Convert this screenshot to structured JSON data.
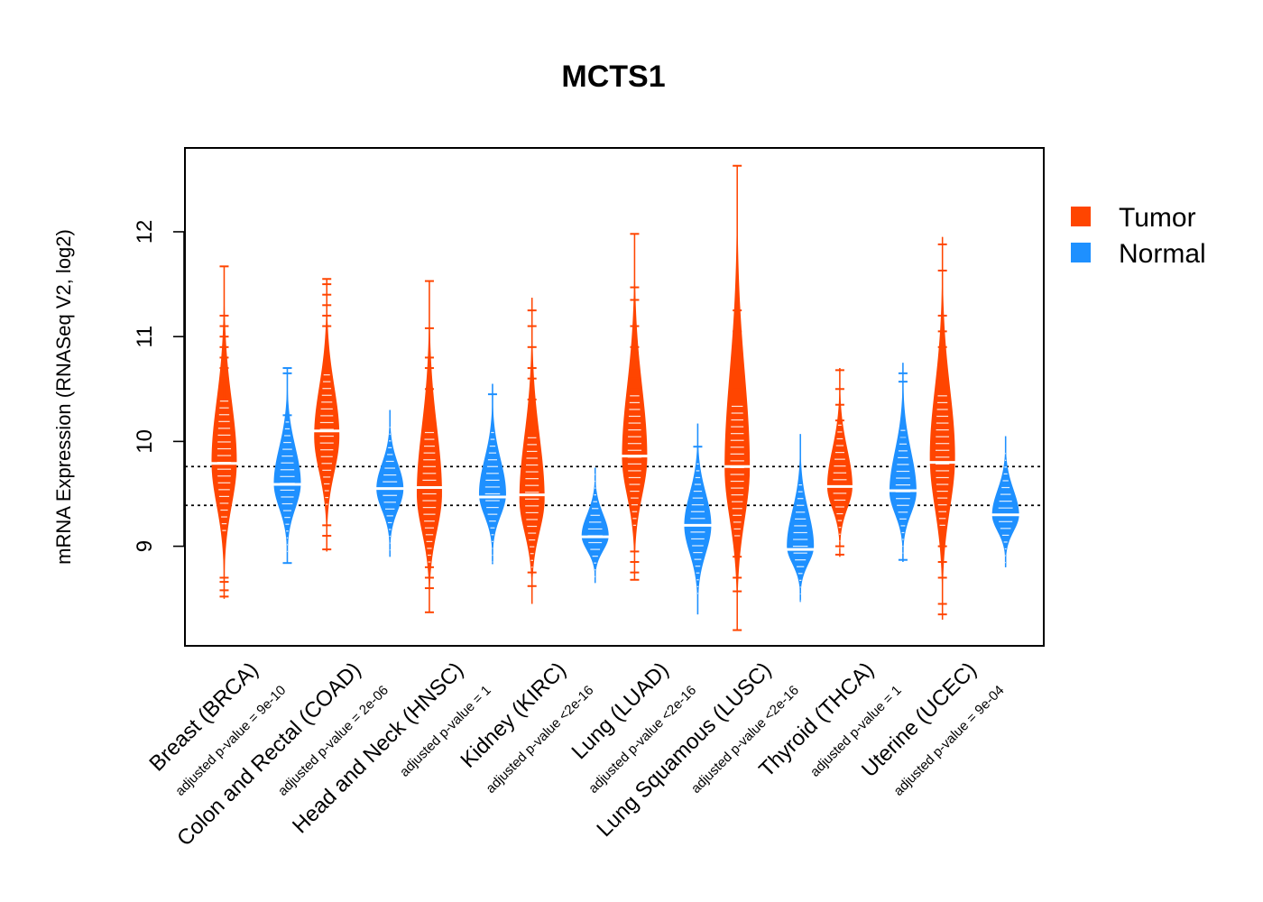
{
  "chart_data": {
    "type": "beanplot",
    "title": "MCTS1",
    "ylabel": "mRNA Expression (RNASeq V2, log2)",
    "xlabel": "",
    "ylim": [
      8.05,
      12.8
    ],
    "yticks": [
      9,
      10,
      11,
      12
    ],
    "reference_lines": [
      9.39,
      9.76
    ],
    "legend": {
      "position": "right",
      "entries": [
        {
          "name": "Tumor",
          "color": "#FF4500"
        },
        {
          "name": "Normal",
          "color": "#1E90FF"
        }
      ]
    },
    "categories": [
      {
        "label": "Breast (BRCA)",
        "pvalue_label": "adjusted p-value = 9e-10",
        "tumor": {
          "median": 9.79,
          "mode": 9.8,
          "min": 8.5,
          "max": 11.67,
          "outliers": [
            8.52,
            8.58,
            8.66,
            8.7,
            10.55,
            10.6,
            10.7,
            10.8,
            10.9,
            11.0,
            11.1,
            11.2,
            11.67
          ]
        },
        "normal": {
          "median": 9.59,
          "mode": 9.6,
          "min": 8.84,
          "max": 10.7,
          "outliers": [
            8.84,
            10.25,
            10.65,
            10.7
          ]
        }
      },
      {
        "label": "Colon and Rectal (COAD)",
        "pvalue_label": "adjusted p-value = 2e-06",
        "tumor": {
          "median": 10.1,
          "mode": 10.05,
          "min": 8.95,
          "max": 11.55,
          "outliers": [
            8.97,
            9.1,
            9.2,
            11.1,
            11.2,
            11.3,
            11.4,
            11.5,
            11.55
          ]
        },
        "normal": {
          "median": 9.55,
          "mode": 9.55,
          "min": 8.9,
          "max": 10.3,
          "outliers": []
        }
      },
      {
        "label": "Head and Neck (HNSC)",
        "pvalue_label": "adjusted p-value = 1",
        "tumor": {
          "median": 9.56,
          "mode": 9.5,
          "min": 8.37,
          "max": 11.53,
          "outliers": [
            8.37,
            8.6,
            8.7,
            8.8,
            10.3,
            10.5,
            10.7,
            10.8,
            11.08,
            11.53
          ]
        },
        "normal": {
          "median": 9.47,
          "mode": 9.5,
          "min": 8.83,
          "max": 10.55,
          "outliers": [
            10.45
          ]
        }
      },
      {
        "label": "Kidney (KIRC)",
        "pvalue_label": "adjusted p-value <2e-16",
        "tumor": {
          "median": 9.49,
          "mode": 9.45,
          "min": 8.45,
          "max": 11.37,
          "outliers": [
            8.62,
            8.75,
            10.2,
            10.4,
            10.6,
            10.7,
            10.9,
            11.1,
            11.25
          ]
        },
        "normal": {
          "median": 9.09,
          "mode": 9.1,
          "min": 8.65,
          "max": 9.75,
          "outliers": []
        }
      },
      {
        "label": "Lung (LUAD)",
        "pvalue_label": "adjusted p-value <2e-16",
        "tumor": {
          "median": 9.86,
          "mode": 9.85,
          "min": 8.68,
          "max": 11.98,
          "outliers": [
            8.68,
            8.75,
            8.85,
            8.95,
            10.5,
            10.6,
            10.7,
            10.9,
            11.1,
            11.35,
            11.47,
            11.98
          ]
        },
        "normal": {
          "median": 9.2,
          "mode": 9.2,
          "min": 8.35,
          "max": 10.17,
          "outliers": [
            9.95
          ]
        }
      },
      {
        "label": "Lung Squamous (LUSC)",
        "pvalue_label": "adjusted p-value <2e-16",
        "tumor": {
          "median": 9.76,
          "mode": 9.75,
          "min": 8.2,
          "max": 12.63,
          "outliers": [
            8.2,
            8.57,
            8.7,
            8.9,
            10.5,
            10.7,
            10.9,
            11.05,
            11.25,
            12.63
          ]
        },
        "normal": {
          "median": 8.97,
          "mode": 9.0,
          "min": 8.47,
          "max": 10.07,
          "outliers": []
        }
      },
      {
        "label": "Thyroid (THCA)",
        "pvalue_label": "adjusted p-value = 1",
        "tumor": {
          "median": 9.57,
          "mode": 9.57,
          "min": 8.9,
          "max": 10.7,
          "outliers": [
            8.92,
            9.0,
            10.2,
            10.35,
            10.5,
            10.68
          ]
        },
        "normal": {
          "median": 9.53,
          "mode": 9.52,
          "min": 8.85,
          "max": 10.75,
          "outliers": [
            8.87,
            10.05,
            10.57,
            10.65
          ]
        }
      },
      {
        "label": "Uterine (UCEC)",
        "pvalue_label": "adjusted p-value = 9e-04",
        "tumor": {
          "median": 9.8,
          "mode": 9.85,
          "min": 8.3,
          "max": 11.95,
          "outliers": [
            8.35,
            8.45,
            8.7,
            8.85,
            9.0,
            10.6,
            10.9,
            11.05,
            11.2,
            11.63,
            11.88
          ]
        },
        "normal": {
          "median": 9.3,
          "mode": 9.3,
          "min": 8.8,
          "max": 10.05,
          "outliers": []
        }
      }
    ]
  }
}
